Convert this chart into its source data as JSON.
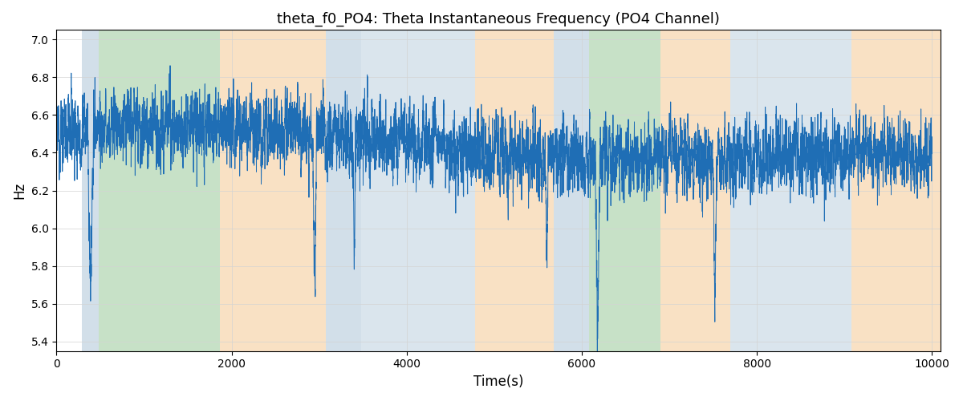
{
  "title": "theta_f0_PO4: Theta Instantaneous Frequency (PO4 Channel)",
  "xlabel": "Time(s)",
  "ylabel": "Hz",
  "ylim": [
    5.35,
    7.05
  ],
  "xlim": [
    0,
    10100
  ],
  "xticks": [
    0,
    2000,
    4000,
    6000,
    8000,
    10000
  ],
  "yticks": [
    5.4,
    5.6,
    5.8,
    6.0,
    6.2,
    6.4,
    6.6,
    6.8,
    7.0
  ],
  "line_color": "#1f6eb5",
  "line_width": 0.7,
  "bg_color": "#ffffff",
  "bands": [
    {
      "start": 290,
      "end": 480,
      "color": "#aec6d8",
      "alpha": 0.55
    },
    {
      "start": 480,
      "end": 1870,
      "color": "#90c490",
      "alpha": 0.5
    },
    {
      "start": 1870,
      "end": 3080,
      "color": "#f5c48a",
      "alpha": 0.5
    },
    {
      "start": 3080,
      "end": 3480,
      "color": "#aec6d8",
      "alpha": 0.55
    },
    {
      "start": 3480,
      "end": 4780,
      "color": "#aec6d8",
      "alpha": 0.45
    },
    {
      "start": 4780,
      "end": 5680,
      "color": "#f5c48a",
      "alpha": 0.5
    },
    {
      "start": 5680,
      "end": 6080,
      "color": "#aec6d8",
      "alpha": 0.55
    },
    {
      "start": 6080,
      "end": 6900,
      "color": "#90c490",
      "alpha": 0.5
    },
    {
      "start": 6900,
      "end": 7700,
      "color": "#f5c48a",
      "alpha": 0.5
    },
    {
      "start": 7700,
      "end": 9080,
      "color": "#aec6d8",
      "alpha": 0.45
    },
    {
      "start": 9080,
      "end": 10100,
      "color": "#f5c48a",
      "alpha": 0.5
    }
  ],
  "seed": 12345,
  "n_points": 10000,
  "figsize": [
    12,
    5
  ],
  "dpi": 100
}
